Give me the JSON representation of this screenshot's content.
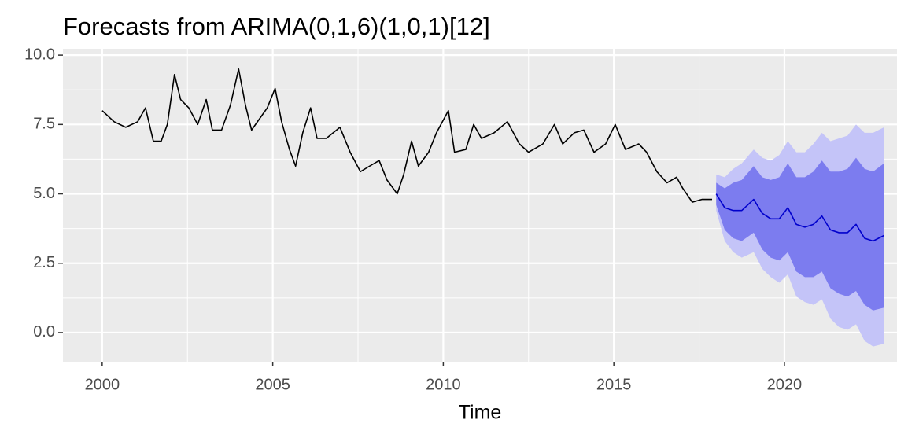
{
  "chart_data": {
    "type": "line",
    "title": "Forecasts from ARIMA(0,1,6)(1,0,1)[12]",
    "xlabel": "Time",
    "xlim": [
      1998.85,
      2023.3
    ],
    "ylim": [
      -1.05,
      10.23
    ],
    "xticks": [
      2000,
      2005,
      2010,
      2015,
      2020
    ],
    "yticks": [
      {
        "value": 0,
        "label": "0.0"
      },
      2.5,
      {
        "value": 5,
        "label": "5.0"
      },
      7.5,
      {
        "value": 10,
        "label": "10.0"
      }
    ],
    "grid": true,
    "series": [
      {
        "color": "#000000",
        "x": [
          2000.0,
          2000.35,
          2000.69,
          2001.04,
          2001.27,
          2001.5,
          2001.73,
          2001.91,
          2002.12,
          2002.3,
          2002.54,
          2002.8,
          2003.05,
          2003.23,
          2003.5,
          2003.76,
          2004.0,
          2004.2,
          2004.38,
          2004.61,
          2004.84,
          2005.07,
          2005.26,
          2005.49,
          2005.67,
          2005.88,
          2006.11,
          2006.3,
          2006.57,
          2006.97,
          2007.27,
          2007.57,
          2007.84,
          2008.12,
          2008.35,
          2008.65,
          2008.84,
          2009.07,
          2009.27,
          2009.57,
          2009.8,
          2010.15,
          2010.33,
          2010.66,
          2010.89,
          2011.12,
          2011.49,
          2011.88,
          2012.23,
          2012.5,
          2012.92,
          2013.26,
          2013.5,
          2013.84,
          2014.12,
          2014.42,
          2014.76,
          2015.04,
          2015.34,
          2015.73,
          2015.96,
          2016.26,
          2016.56,
          2016.84,
          2017.02,
          2017.3,
          2017.58,
          2017.88
        ],
        "values": [
          8.0,
          7.6,
          7.4,
          7.6,
          8.1,
          6.9,
          6.9,
          7.5,
          9.3,
          8.4,
          8.1,
          7.5,
          8.4,
          7.3,
          7.3,
          8.2,
          9.5,
          8.2,
          7.3,
          7.7,
          8.1,
          8.8,
          7.6,
          6.6,
          6.0,
          7.2,
          8.1,
          7.0,
          7.0,
          7.4,
          6.5,
          5.8,
          6.0,
          6.2,
          5.5,
          5.0,
          5.7,
          6.9,
          6.0,
          6.5,
          7.2,
          8.0,
          6.5,
          6.6,
          7.5,
          7.0,
          7.2,
          7.6,
          6.8,
          6.5,
          6.8,
          7.5,
          6.8,
          7.2,
          7.3,
          6.5,
          6.8,
          7.5,
          6.6,
          6.8,
          6.5,
          5.8,
          5.4,
          5.6,
          5.2,
          4.7,
          4.8,
          4.8
        ]
      },
      {
        "color": "#0000cc",
        "x": [
          2018.0,
          2018.25,
          2018.5,
          2018.75,
          2019.1,
          2019.35,
          2019.6,
          2019.85,
          2020.1,
          2020.35,
          2020.6,
          2020.85,
          2021.1,
          2021.35,
          2021.6,
          2021.85,
          2022.1,
          2022.35,
          2022.6,
          2022.92
        ],
        "values": [
          5.0,
          4.5,
          4.4,
          4.4,
          4.8,
          4.3,
          4.1,
          4.1,
          4.5,
          3.9,
          3.8,
          3.9,
          4.2,
          3.7,
          3.6,
          3.6,
          3.9,
          3.4,
          3.3,
          3.5
        ]
      }
    ],
    "bands": [
      {
        "color": "#c4c4f8",
        "lower": [
          4.4,
          3.3,
          2.9,
          2.7,
          2.9,
          2.3,
          2.0,
          1.8,
          2.1,
          1.3,
          1.1,
          1.0,
          1.2,
          0.5,
          0.2,
          0.1,
          0.3,
          -0.3,
          -0.5,
          -0.4
        ],
        "upper": [
          5.7,
          5.6,
          5.9,
          6.1,
          6.6,
          6.3,
          6.2,
          6.4,
          6.9,
          6.5,
          6.5,
          6.8,
          7.2,
          6.9,
          7.0,
          7.1,
          7.5,
          7.2,
          7.2,
          7.4
        ]
      },
      {
        "color": "#7c7cef",
        "lower": [
          4.6,
          3.7,
          3.4,
          3.3,
          3.6,
          3.0,
          2.7,
          2.6,
          2.9,
          2.2,
          2.0,
          2.0,
          2.2,
          1.6,
          1.4,
          1.3,
          1.5,
          1.0,
          0.8,
          0.9
        ],
        "upper": [
          5.4,
          5.2,
          5.4,
          5.5,
          6.0,
          5.6,
          5.5,
          5.6,
          6.1,
          5.6,
          5.6,
          5.8,
          6.2,
          5.8,
          5.8,
          5.9,
          6.3,
          5.9,
          5.8,
          6.1
        ]
      }
    ]
  }
}
